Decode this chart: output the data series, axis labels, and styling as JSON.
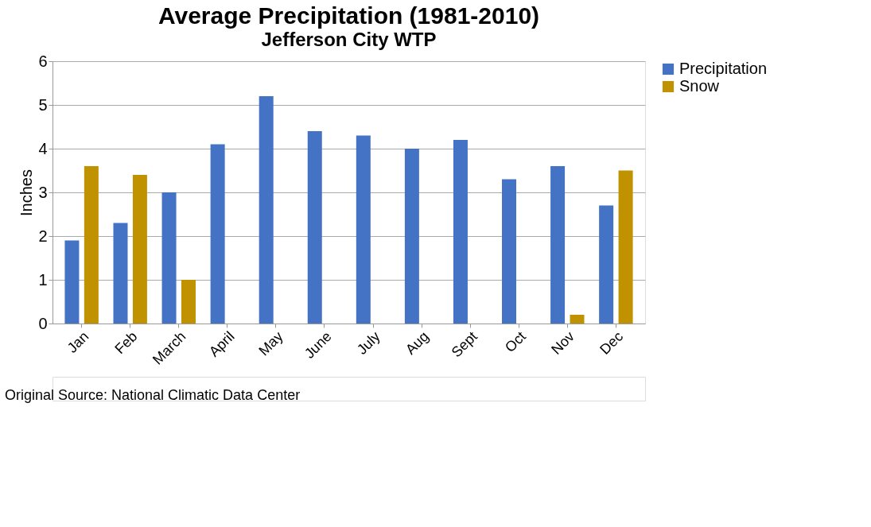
{
  "chart_data": {
    "type": "bar",
    "title": "Average Precipitation (1981-2010)",
    "subtitle": "Jefferson City WTP",
    "ylabel": "Inches",
    "categories": [
      "Jan",
      "Feb",
      "March",
      "April",
      "May",
      "June",
      "July",
      "Aug",
      "Sept",
      "Oct",
      "Nov",
      "Dec"
    ],
    "series": [
      {
        "name": "Precipitation",
        "color": "#4472c4",
        "values": [
          1.9,
          2.3,
          3.0,
          4.1,
          5.2,
          4.4,
          4.3,
          4.0,
          4.2,
          3.3,
          3.6,
          2.7
        ]
      },
      {
        "name": "Snow",
        "color": "#c09200",
        "values": [
          3.6,
          3.4,
          1.0,
          null,
          null,
          null,
          null,
          null,
          null,
          null,
          0.2,
          3.5
        ]
      }
    ],
    "ylim": [
      0,
      6
    ],
    "yticks": [
      0,
      1,
      2,
      3,
      4,
      5,
      6
    ],
    "grid": "y",
    "legend": "right",
    "annotations": [
      "Original Source: National Climatic Data Center"
    ]
  }
}
